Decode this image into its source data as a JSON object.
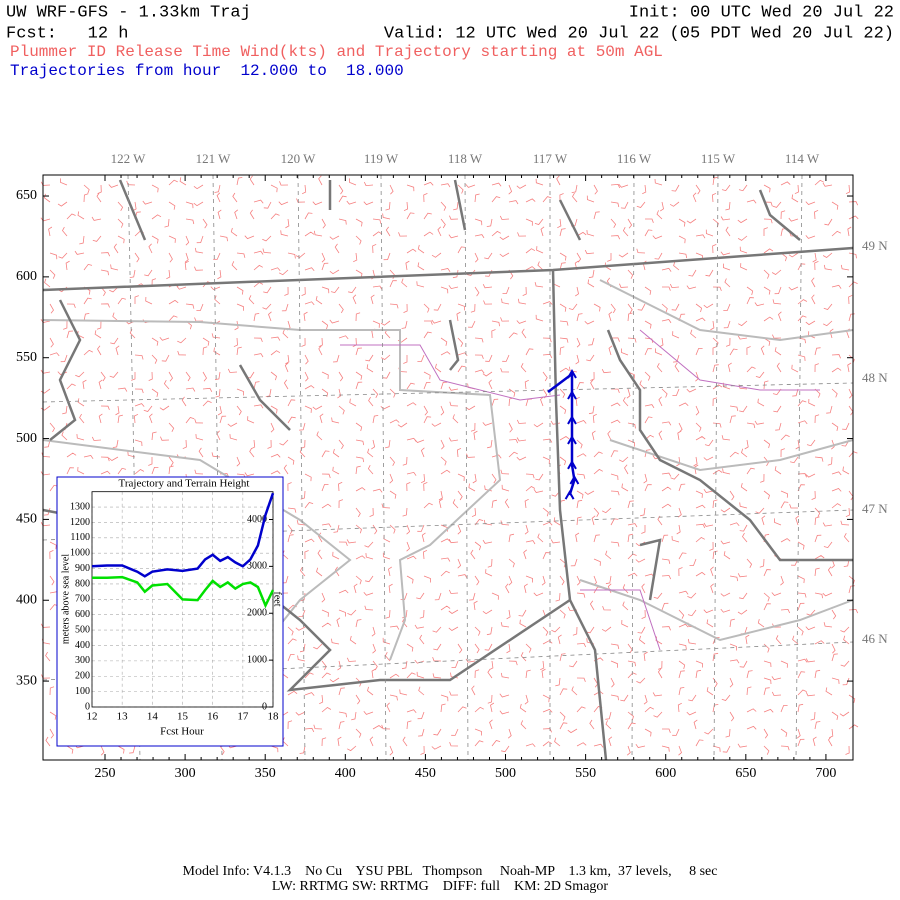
{
  "header": {
    "title": "UW WRF-GFS - 1.33km Traj",
    "init": "Init: 00 UTC Wed 20 Jul 22",
    "fcst": "Fcst:   12 h",
    "valid": "Valid: 12 UTC Wed 20 Jul 22 (05 PDT Wed 20 Jul 22)",
    "description": "Plummer ID Release Time Wind(kts) and Trajectory starting at 50m AGL",
    "trajectory_range": "Trajectories from hour  12.000 to  18.000"
  },
  "map": {
    "xlim": [
      211.3,
      716.9
    ],
    "ylim": [
      301.2,
      663
    ],
    "xticks": [
      250,
      300,
      350,
      400,
      450,
      500,
      550,
      600,
      650,
      700
    ],
    "yticks": [
      350,
      400,
      450,
      500,
      550,
      600,
      650
    ],
    "longitude_labels": [
      "122 W",
      "121 W",
      "120 W",
      "119 W",
      "118 W",
      "117 W",
      "116 W",
      "115 W",
      "114 W"
    ],
    "latitude_labels": [
      "49 N",
      "48 N",
      "47 N",
      "46 N"
    ],
    "trajectory": {
      "color": "#0000cc",
      "x": [
        540,
        543,
        541.5,
        541.5,
        541.5,
        541.5,
        541.5,
        526.5
      ],
      "y": [
        465,
        474.4,
        483.7,
        499.1,
        511.5,
        526.9,
        539.9,
        528.8
      ]
    }
  },
  "chart_data": {
    "type": "line",
    "title": "Trajectory and Terrain Height",
    "x_label": "Fcst Hour",
    "y_label": "meters above sea level",
    "y2_label": "feet",
    "x": [
      12,
      12.5,
      13,
      13.5,
      13.75,
      14,
      14.5,
      15,
      15.5,
      15.75,
      16,
      16.25,
      16.5,
      16.75,
      17,
      17.25,
      17.5,
      17.75,
      18
    ],
    "xlim": [
      12,
      18
    ],
    "xticks": [
      12,
      13,
      14,
      15,
      16,
      17,
      18
    ],
    "ylim": [
      0,
      1400
    ],
    "yticks": [
      0,
      100,
      200,
      300,
      400,
      500,
      600,
      700,
      800,
      900,
      1000,
      1100,
      1200,
      1300
    ],
    "y2lim": [
      0,
      4593
    ],
    "y2ticks": [
      0,
      1000,
      2000,
      3000,
      4000
    ],
    "grid": true,
    "series": [
      {
        "color": "#0000cc",
        "values": [
          915,
          920,
          920,
          880,
          850,
          880,
          895,
          885,
          900,
          960,
          990,
          950,
          975,
          940,
          915,
          960,
          1050,
          1250,
          1390
        ]
      },
      {
        "color": "#00e000",
        "values": [
          840,
          840,
          845,
          810,
          750,
          790,
          800,
          700,
          695,
          760,
          820,
          780,
          810,
          770,
          800,
          810,
          780,
          660,
          760
        ]
      }
    ]
  },
  "footer": {
    "line1": "Model Info: V4.1.3    No Cu    YSU PBL   Thompson     Noah-MP    1.3 km,  37 levels,     8 sec",
    "line2": "LW: RRTMG SW: RRTMG    DIFF: full    KM: 2D Smagor"
  }
}
